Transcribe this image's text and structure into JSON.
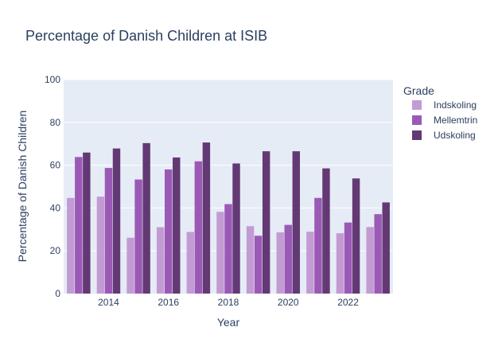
{
  "chart_data": {
    "type": "bar",
    "title": "Percentage of Danish Children at ISIB",
    "xlabel": "Year",
    "ylabel": "Percentage of Danish Children",
    "ylim": [
      0,
      100
    ],
    "xlim": [
      2012.5,
      2023.5
    ],
    "y_ticks": [
      0,
      20,
      40,
      60,
      80,
      100
    ],
    "x_ticks": [
      2014,
      2016,
      2018,
      2020,
      2022
    ],
    "grid": true,
    "legend_title": "Grade",
    "legend_position": "right",
    "categories": [
      2013,
      2014,
      2015,
      2016,
      2017,
      2018,
      2019,
      2020,
      2021,
      2022,
      2023
    ],
    "series": [
      {
        "name": "Indskoling",
        "color": "#c39bd3",
        "values": [
          44.7,
          45.3,
          26.1,
          31.0,
          28.8,
          38.2,
          31.5,
          28.6,
          28.9,
          28.2,
          31.1
        ]
      },
      {
        "name": "Mellemtrin",
        "color": "#9b59b6",
        "values": [
          63.8,
          58.7,
          53.3,
          58.0,
          61.8,
          41.8,
          27.0,
          32.1,
          44.7,
          33.2,
          37.1
        ]
      },
      {
        "name": "Udskoling",
        "color": "#633974",
        "values": [
          65.9,
          67.8,
          70.3,
          63.6,
          70.6,
          60.8,
          66.5,
          66.5,
          58.5,
          53.8,
          42.6
        ]
      }
    ]
  },
  "colors": {
    "plot_background": "#e5ecf6",
    "gridline": "#ffffff",
    "text": "#2a3f5f"
  }
}
